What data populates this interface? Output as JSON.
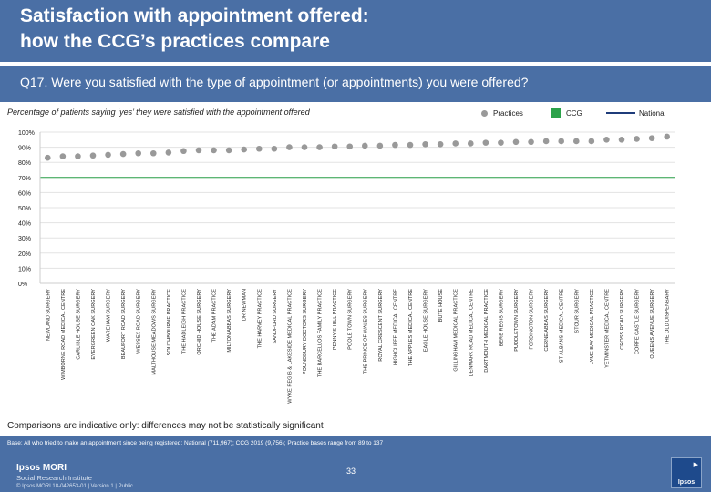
{
  "header": {
    "title_line1": "Satisfaction with appointment offered:",
    "title_line2": "how the CCG’s practices compare",
    "question": "Q17. Were you satisfied with the type of appointment (or appointments) you were offered?"
  },
  "colors": {
    "banner": "#4a6fa5",
    "practices": "#999999",
    "ccg": "#2ca24a",
    "national": "#1f3c7a",
    "reference_line": "#2ca24a"
  },
  "chart_data": {
    "type": "scatter",
    "title": "Percentage of patients saying ‘yes’ they were satisfied with the appointment offered",
    "ylim": [
      0,
      100
    ],
    "yticks": [
      "100%",
      "90%",
      "80%",
      "70%",
      "60%",
      "50%",
      "40%",
      "30%",
      "20%",
      "10%",
      "0%"
    ],
    "ytick_values": [
      100,
      90,
      80,
      70,
      60,
      50,
      40,
      30,
      20,
      10,
      0
    ],
    "legend": [
      "Practices",
      "CCG",
      "National"
    ],
    "ccg_value": 70,
    "categories": [
      "NEWLAND SURGERY",
      "WIMBORNE ROAD MEDICAL CENTRE",
      "CARLISLE HOUSE SURGERY",
      "EVERGREEN OAK SURGERY",
      "WAREHAM SURGERY",
      "BEAUFORT ROAD SURGERY",
      "WESSEX ROAD SURGERY",
      "MALTHOUSE MEADOWS SURGERY",
      "SOUTHBOURNE PRACTICE",
      "THE HADLEIGH PRACTICE",
      "ORCHID HOUSE SURGERY",
      "THE ADAM PRACTICE",
      "MILTON ABBAS SURGERY",
      "DR NEWMAN",
      "THE HARVEY PRACTICE",
      "SANDFORD SURGERY",
      "WYKE REGIS & LAKESIDE MEDICAL PRACTICE",
      "POUNDBURY DOCTORS SURGERY",
      "THE BARCELLOS FAMILY PRACTICE",
      "PENNY'S HILL PRACTICE",
      "POOLE TOWN SURGERY",
      "THE PRINCE OF WALES SURGERY",
      "ROYAL CRESCENT SURGERY",
      "HIGHCLIFFE MEDICAL CENTRE",
      "THE APPLES MEDICAL CENTRE",
      "EAGLE HOUSE SURGERY",
      "BUTE HOUSE",
      "GILLINGHAM MEDICAL PRACTICE",
      "DENMARK ROAD MEDICAL CENTRE",
      "DARTMOUTH MEDICAL PRACTICE",
      "BERE REGIS SURGERY",
      "PUDDLETOWN SURGERY",
      "FORDINGTON SURGERY",
      "CERNE ABBAS SURGERY",
      "ST ALBANS MEDICAL CENTRE",
      "STOUR SURGERY",
      "LYME BAY MEDICAL PRACTICE",
      "YETMINSTER MEDICAL CENTRE",
      "CROSS ROAD SURGERY",
      "CORFE CASTLE SURGERY",
      "QUEENS AVENUE SURGERY",
      "THE OLD DISPENSARY"
    ],
    "values": [
      83,
      84,
      84,
      84.5,
      85,
      85.5,
      86,
      86,
      86.5,
      87.5,
      88,
      88,
      88,
      88.5,
      89,
      89,
      90,
      90,
      90,
      90.5,
      90.5,
      91,
      91,
      91.5,
      91.5,
      92,
      92,
      92.5,
      92.5,
      93,
      93,
      93.5,
      93.5,
      94,
      94,
      94,
      94,
      95,
      95,
      95.5,
      96,
      97
    ]
  },
  "notes": {
    "comparison": "Comparisons are indicative only: differences may not be statistically significant",
    "base": "Base: All who tried to make an appointment since being registered: National (711,967); CCG 2019 (9,756); Practice bases range from 89 to 137"
  },
  "footer": {
    "brand_line1": "Ipsos MORI",
    "brand_line2": "Social Research Institute",
    "copyright": "© Ipsos MORI      18-042653-01 | Version 1 | Public",
    "page_number": "33",
    "logo_text": "Ipsos"
  }
}
